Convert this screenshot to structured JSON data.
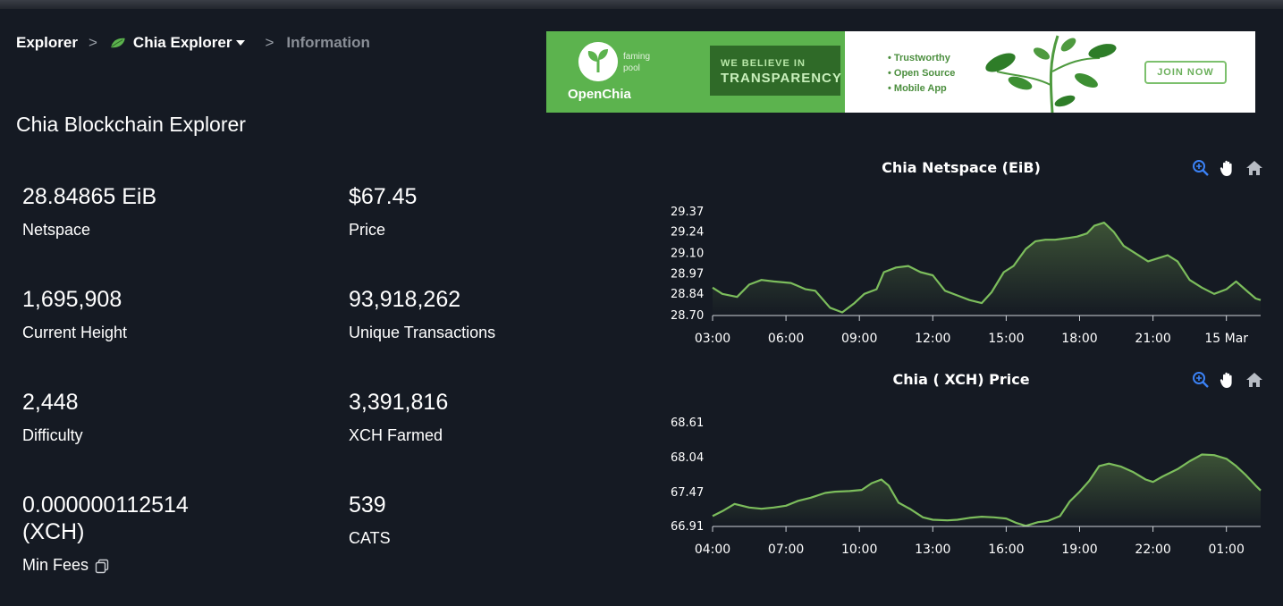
{
  "breadcrumb": {
    "home": "Explorer",
    "explorer": "Chia Explorer",
    "current": "Information",
    "separator": ">"
  },
  "page_title": "Chia Blockchain Explorer",
  "stats": [
    {
      "value": "28.84865 EiB",
      "label": "Netspace"
    },
    {
      "value": "$67.45",
      "label": "Price"
    },
    {
      "value": "1,695,908",
      "label": "Current Height"
    },
    {
      "value": "93,918,262",
      "label": "Unique Transactions"
    },
    {
      "value": "2,448",
      "label": "Difficulty"
    },
    {
      "value": "3,391,816",
      "label": "XCH Farmed"
    },
    {
      "value_line1": "0.000000112514",
      "value_line2": "(XCH)",
      "label": "Min Fees"
    },
    {
      "value": "539",
      "label": "CATS"
    }
  ],
  "banner": {
    "brand": "OpenChia",
    "brand_sub": "faming pool",
    "tag_line1": "WE BELIEVE IN",
    "tag_line2": "TRANSPARENCY",
    "bullets": [
      "• Trustworthy",
      "• Open Source",
      "• Mobile App"
    ],
    "cta": "JOIN NOW",
    "colors": {
      "green": "#5cb34e",
      "dark": "#2f6a28"
    }
  },
  "chart_tools": [
    "zoom-icon",
    "pan-hand-icon",
    "home-icon"
  ],
  "chart_data": [
    {
      "type": "area",
      "title": "Chia Netspace (EiB)",
      "x_ticks": [
        "03:00",
        "06:00",
        "09:00",
        "12:00",
        "15:00",
        "18:00",
        "21:00",
        "15 Mar"
      ],
      "y_ticks": [
        "29.37",
        "29.24",
        "29.10",
        "28.97",
        "28.84",
        "28.70"
      ],
      "ylim": [
        28.7,
        29.37
      ],
      "x_start": 3.0,
      "x_end": 25.4,
      "series": [
        {
          "x": [
            3.0,
            3.4,
            4.0,
            4.5,
            5.0,
            5.5,
            6.2,
            6.8,
            7.2,
            7.8,
            8.3,
            8.8,
            9.2,
            9.7,
            10.0,
            10.5,
            11.0,
            11.5,
            12.0,
            12.5,
            13.0,
            13.5,
            14.0,
            14.4,
            14.9,
            15.3,
            15.8,
            16.2,
            16.6,
            17.0,
            17.5,
            17.9,
            18.3,
            18.6,
            19.0,
            19.4,
            19.8,
            20.3,
            20.8,
            21.2,
            21.6,
            22.0,
            22.5,
            23.0,
            23.5,
            24.0,
            24.4,
            24.9,
            25.2,
            25.4
          ],
          "y": [
            28.88,
            28.84,
            28.82,
            28.9,
            28.93,
            28.92,
            28.91,
            28.87,
            28.86,
            28.75,
            28.72,
            28.78,
            28.84,
            28.87,
            28.98,
            29.01,
            29.02,
            28.98,
            28.96,
            28.86,
            28.83,
            28.8,
            28.78,
            28.85,
            28.98,
            29.02,
            29.13,
            29.18,
            29.19,
            29.19,
            29.2,
            29.21,
            29.23,
            29.28,
            29.3,
            29.24,
            29.15,
            29.1,
            29.05,
            29.07,
            29.09,
            29.05,
            28.93,
            28.88,
            28.84,
            28.87,
            28.92,
            28.85,
            28.81,
            28.8
          ]
        }
      ],
      "color": "#7cbd5c"
    },
    {
      "type": "area",
      "title": "Chia ( XCH) Price",
      "x_ticks": [
        "04:00",
        "07:00",
        "10:00",
        "13:00",
        "16:00",
        "19:00",
        "22:00",
        "01:00"
      ],
      "y_ticks": [
        "68.61",
        "68.04",
        "67.47",
        "66.91"
      ],
      "ylim": [
        66.91,
        68.61
      ],
      "x_start": 4.0,
      "x_end": 26.4,
      "series": [
        {
          "x": [
            4.0,
            4.4,
            4.9,
            5.5,
            6.0,
            6.5,
            7.0,
            7.5,
            8.0,
            8.6,
            9.0,
            9.6,
            10.1,
            10.5,
            10.9,
            11.2,
            11.6,
            12.1,
            12.6,
            13.0,
            13.6,
            14.0,
            14.5,
            15.0,
            15.5,
            16.0,
            16.4,
            16.8,
            17.3,
            17.7,
            18.2,
            18.6,
            19.0,
            19.4,
            19.8,
            20.2,
            20.7,
            21.2,
            21.7,
            22.0,
            22.4,
            23.0,
            23.5,
            24.0,
            24.5,
            25.0,
            25.4,
            25.8,
            26.2,
            26.4
          ],
          "y": [
            67.08,
            67.16,
            67.28,
            67.22,
            67.2,
            67.22,
            67.25,
            67.33,
            67.38,
            67.46,
            67.48,
            67.49,
            67.51,
            67.62,
            67.68,
            67.58,
            67.3,
            67.19,
            67.06,
            67.02,
            67.01,
            67.02,
            67.05,
            67.07,
            67.06,
            67.04,
            66.97,
            66.92,
            66.98,
            67.0,
            67.08,
            67.32,
            67.48,
            67.66,
            67.9,
            67.94,
            67.89,
            67.8,
            67.68,
            67.64,
            67.73,
            67.85,
            67.98,
            68.09,
            68.08,
            68.02,
            67.9,
            67.75,
            67.58,
            67.5
          ]
        }
      ],
      "color": "#7cbd5c"
    }
  ]
}
